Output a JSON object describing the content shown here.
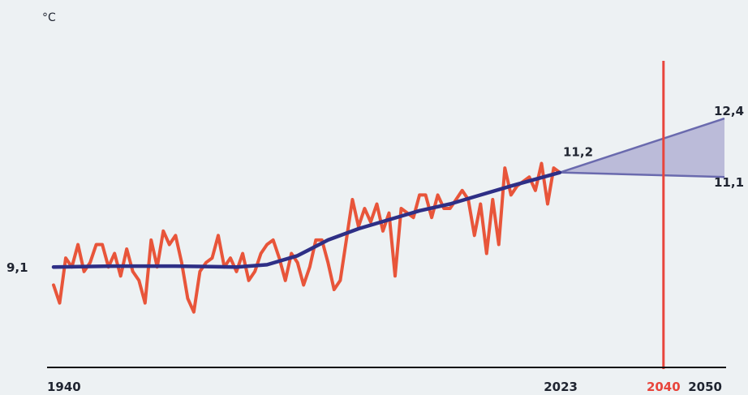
{
  "chart_data": {
    "type": "line",
    "unit_label": "°C",
    "x_range": [
      1940,
      2050
    ],
    "y_range": [
      7.5,
      13.5
    ],
    "x_tick_labels": [
      "1940",
      "2023",
      "2040",
      "2050"
    ],
    "highlight_year": 2040,
    "highlight_color": "#e8453c",
    "series": [
      {
        "color": "#e8553a",
        "x": [
          1940,
          1941,
          1942,
          1943,
          1944,
          1945,
          1946,
          1947,
          1948,
          1949,
          1950,
          1951,
          1952,
          1953,
          1954,
          1955,
          1956,
          1957,
          1958,
          1959,
          1960,
          1961,
          1962,
          1963,
          1964,
          1965,
          1966,
          1967,
          1968,
          1969,
          1970,
          1971,
          1972,
          1973,
          1974,
          1975,
          1976,
          1977,
          1978,
          1979,
          1980,
          1981,
          1982,
          1983,
          1984,
          1985,
          1986,
          1987,
          1988,
          1989,
          1990,
          1991,
          1992,
          1993,
          1994,
          1995,
          1996,
          1997,
          1998,
          1999,
          2000,
          2001,
          2002,
          2003,
          2004,
          2005,
          2006,
          2007,
          2008,
          2009,
          2010,
          2011,
          2012,
          2013,
          2014,
          2015,
          2016,
          2017,
          2018,
          2019,
          2020,
          2021,
          2022,
          2023
        ],
        "y": [
          8.7,
          8.3,
          9.3,
          9.1,
          9.6,
          9.0,
          9.2,
          9.6,
          9.6,
          9.1,
          9.4,
          8.9,
          9.5,
          9.0,
          8.8,
          8.3,
          9.7,
          9.1,
          9.9,
          9.6,
          9.8,
          9.2,
          8.4,
          8.1,
          9.0,
          9.2,
          9.3,
          9.8,
          9.1,
          9.3,
          9.0,
          9.4,
          8.8,
          9.0,
          9.4,
          9.6,
          9.7,
          9.3,
          8.8,
          9.4,
          9.2,
          8.7,
          9.1,
          9.7,
          9.7,
          9.2,
          8.6,
          8.8,
          9.7,
          10.6,
          10.0,
          10.4,
          10.1,
          10.5,
          9.9,
          10.3,
          8.9,
          10.4,
          10.3,
          10.2,
          10.7,
          10.7,
          10.2,
          10.7,
          10.4,
          10.4,
          10.6,
          10.8,
          10.6,
          9.8,
          10.5,
          9.4,
          10.6,
          9.6,
          11.3,
          10.7,
          10.9,
          11.0,
          11.1,
          10.8,
          11.4,
          10.5,
          11.3,
          11.2
        ]
      },
      {
        "color": "#2e2f86",
        "x": [
          1940,
          1950,
          1960,
          1970,
          1975,
          1980,
          1985,
          1990,
          1995,
          2000,
          2005,
          2010,
          2015,
          2023
        ],
        "y": [
          9.1,
          9.12,
          9.12,
          9.1,
          9.15,
          9.35,
          9.7,
          9.95,
          10.15,
          10.35,
          10.5,
          10.7,
          10.9,
          11.2
        ]
      }
    ],
    "projection": {
      "start": {
        "x": 2023,
        "y": 11.2
      },
      "end_x": 2050,
      "upper": 12.4,
      "lower": 11.1,
      "fill": "#a9a8d0",
      "stroke": "#6a6aae"
    },
    "value_labels": [
      "9,1",
      "11,2",
      "12,4",
      "11,1"
    ]
  }
}
